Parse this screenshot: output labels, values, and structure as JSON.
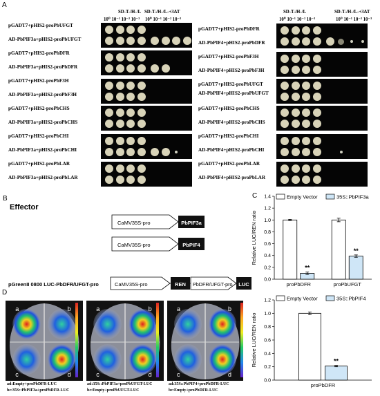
{
  "panel_a": {
    "letter": "A",
    "headers": {
      "sd_ii": "SD-T-/H-/L",
      "sd_iii": "SD-T-/H-/L-+3AT",
      "dilutions": "10⁰ 10⁻¹ 10⁻² 10⁻³"
    },
    "left_rows": [
      "pGADT7+pHIS2-proPbUFGT",
      "AD-PbPIF3a+pHIS2-proPbUFGT",
      "pGADT7+pHIS2-proPbDFR",
      "AD-PbPIF3a+pHIS2-proPbDFR",
      "pGADT7+pHIS2-proPbF3H",
      "AD-PbPIF3a+pHIS2-proPbF3H",
      "pGADT7+pHIS2-proPbCHS",
      "AD-PbPIF3a+pHIS2-proPbCHS",
      "pGADT7+pHIS2-proPbCHI",
      "AD-PbPIF3a+pHIS2-proPbCHI",
      "pGADT7+pHIS2-proPbLAR",
      "AD-PbPIF3a+pHIS2-proPbLAR"
    ],
    "right_rows": [
      "pGADT7+pHIS2-proPbDFR",
      "AD-PbPIF4+pHIS2-proPbDFR",
      "pGADT7+pHIS2-proPbF3H",
      "AD-PbPIF4+pHIS2-proPbF3H",
      "pGADT7+pHIS2-proPbUFGT",
      "AD-PbPIF4+pHIS2-proPbUFGT",
      "pGADT7+pHIS2-proPbCHS",
      "AD-PbPIF4+pHIS2-proPbCHS",
      "pGADT7+pHIS2-proPbCHI",
      "AD-PbPIF4+pHIS2-proPbCHI",
      "pGADT7+pHIS2-proPbLAR",
      "AD-PbPIF4+pHIS2-proPbLAR"
    ]
  },
  "panel_b": {
    "letter": "B",
    "effector_title": "Effector",
    "promoter1": "CaMV35S-pro",
    "gene1": "PbPIF3a",
    "promoter2": "CaMV35S-pro",
    "gene2": "PbPIF4",
    "reporter_label": "pGreenII 0800 LUC-PbDFR/UFGT-pro",
    "reporter_promoter": "CaMV35S-pro",
    "reporter_ren": "REN",
    "reporter_target": "PbDFR/UFGT-pro",
    "reporter_luc": "LUC"
  },
  "panel_c": {
    "letter": "C"
  },
  "panel_d": {
    "letter": "D",
    "leaf1_caption_1": "ad:Empty+proPbDFR-LUC",
    "leaf1_caption_2": "bc:35S::PbPIF3a+proPbDFR-LUC",
    "leaf2_caption_1": "ad:35S::PbPIF3a+proPbUFGT-LUC",
    "leaf2_caption_2": "bc:Empty+proPbUFGT-LUC",
    "leaf3_caption_1": "ad:35S::PbPIF4+proPbDFR-LUC",
    "leaf3_caption_2": "bc:Empty+proPbDFR-LUC",
    "quadrants": [
      "a",
      "b",
      "c",
      "d"
    ]
  },
  "chart_data": [
    {
      "type": "bar",
      "categories": [
        "proPbDFR",
        "proPbUFGT"
      ],
      "series": [
        {
          "name": "Empty Vector",
          "values": [
            1.0,
            1.0
          ],
          "errors": [
            0.01,
            0.03
          ],
          "color": "#ffffff"
        },
        {
          "name": "35S::PbPIF3a",
          "values": [
            0.1,
            0.39
          ],
          "errors": [
            0.02,
            0.02
          ],
          "color": "#cfe6f7"
        }
      ],
      "significance": [
        "**",
        "**"
      ],
      "ylabel": "Relative LUC/REN ratio",
      "ylim": [
        0,
        1.4
      ],
      "yticks": [
        "0.0",
        "0.2",
        "0.4",
        "0.6",
        "0.8",
        "1.0",
        "1.2",
        "1.4"
      ],
      "legend": "top"
    },
    {
      "type": "bar",
      "categories": [
        "proPbDFR"
      ],
      "series": [
        {
          "name": "Empty Vector",
          "values": [
            1.0
          ],
          "errors": [
            0.02
          ],
          "color": "#ffffff"
        },
        {
          "name": "35S::PbPIF4",
          "values": [
            0.21
          ],
          "errors": [
            0.01
          ],
          "color": "#cfe6f7"
        }
      ],
      "significance": [
        "**"
      ],
      "ylabel": "Relative LUC/REN ratio",
      "ylim": [
        0,
        1.2
      ],
      "yticks": [
        "0.0",
        "0.2",
        "0.4",
        "0.6",
        "0.8",
        "1.0",
        "1.2"
      ],
      "legend": "top"
    }
  ]
}
